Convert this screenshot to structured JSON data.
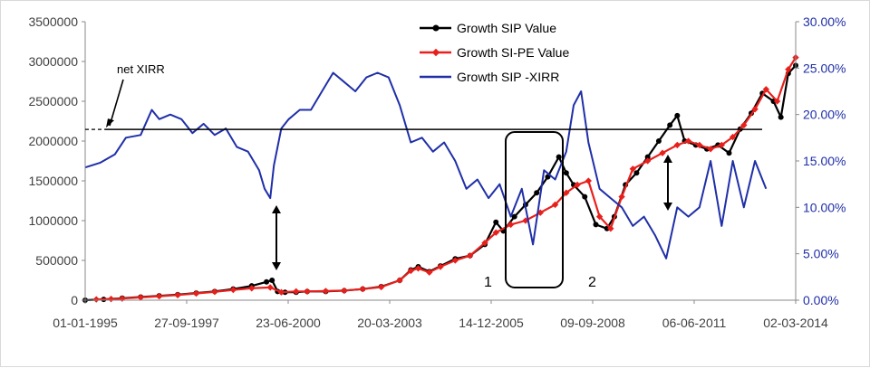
{
  "chart_data": {
    "type": "line",
    "title": "",
    "xlabel": "",
    "ylabel": "",
    "x_ticks": [
      "01-01-1995",
      "27-09-1997",
      "23-06-2000",
      "20-03-2003",
      "14-12-2005",
      "09-09-2008",
      "06-06-2011",
      "02-03-2014"
    ],
    "x_range_years": [
      1995.0,
      2014.2
    ],
    "y_left": {
      "range": [
        0,
        3500000
      ],
      "ticks": [
        "0",
        "500000",
        "1000000",
        "1500000",
        "2000000",
        "2500000",
        "3000000",
        "3500000"
      ],
      "color": "#404040"
    },
    "y_right": {
      "range": [
        0,
        0.3
      ],
      "ticks": [
        "0.00%",
        "5.00%",
        "10.00%",
        "15.00%",
        "20.00%",
        "25.00%",
        "30.00%"
      ],
      "color": "#1f2fa8"
    },
    "grid": false,
    "legend_position": "top-center",
    "series": [
      {
        "name": "Growth SIP Value",
        "axis": "left",
        "color": "#000000",
        "marker": "circle",
        "x": [
          1995.0,
          1995.5,
          1996.0,
          1996.5,
          1997.0,
          1997.5,
          1998.0,
          1998.5,
          1999.0,
          1999.5,
          1999.9,
          2000.05,
          2000.2,
          2000.4,
          2000.7,
          2001.0,
          2001.5,
          2002.0,
          2002.5,
          2003.0,
          2003.5,
          2003.8,
          2004.0,
          2004.3,
          2004.6,
          2005.0,
          2005.4,
          2005.8,
          2006.1,
          2006.3,
          2006.6,
          2006.9,
          2007.2,
          2007.5,
          2007.8,
          2008.0,
          2008.2,
          2008.5,
          2008.8,
          2009.1,
          2009.3,
          2009.6,
          2009.9,
          2010.2,
          2010.5,
          2010.8,
          2011.0,
          2011.2,
          2011.5,
          2011.8,
          2012.1,
          2012.4,
          2012.7,
          2013.0,
          2013.3,
          2013.6,
          2013.8,
          2014.0,
          2014.2
        ],
        "y": [
          0,
          10000,
          25000,
          40000,
          55000,
          70000,
          90000,
          110000,
          140000,
          180000,
          230000,
          250000,
          110000,
          100000,
          100000,
          110000,
          110000,
          120000,
          140000,
          170000,
          250000,
          380000,
          420000,
          360000,
          430000,
          520000,
          560000,
          700000,
          980000,
          870000,
          1050000,
          1200000,
          1350000,
          1550000,
          1800000,
          1600000,
          1450000,
          1300000,
          950000,
          900000,
          1050000,
          1450000,
          1600000,
          1800000,
          2000000,
          2200000,
          2320000,
          2000000,
          1950000,
          1900000,
          1950000,
          1850000,
          2150000,
          2350000,
          2600000,
          2500000,
          2300000,
          2850000,
          2950000
        ]
      },
      {
        "name": "Growth SI-PE Value",
        "axis": "left",
        "color": "#e8201c",
        "marker": "diamond",
        "x": [
          1995.3,
          1995.7,
          1996.0,
          1996.5,
          1997.0,
          1997.5,
          1998.0,
          1998.5,
          1999.0,
          1999.5,
          2000.0,
          2000.3,
          2000.7,
          2001.0,
          2001.5,
          2002.0,
          2002.5,
          2003.0,
          2003.5,
          2003.8,
          2004.0,
          2004.3,
          2004.6,
          2005.0,
          2005.4,
          2005.8,
          2006.1,
          2006.5,
          2006.9,
          2007.3,
          2007.7,
          2008.0,
          2008.3,
          2008.6,
          2008.9,
          2009.2,
          2009.5,
          2009.8,
          2010.2,
          2010.6,
          2011.0,
          2011.3,
          2011.6,
          2011.9,
          2012.2,
          2012.5,
          2012.8,
          2013.1,
          2013.4,
          2013.7,
          2014.0,
          2014.2
        ],
        "y": [
          10000,
          15000,
          20000,
          35000,
          50000,
          65000,
          85000,
          105000,
          130000,
          150000,
          160000,
          100000,
          110000,
          110000,
          115000,
          120000,
          140000,
          165000,
          250000,
          370000,
          400000,
          350000,
          420000,
          500000,
          560000,
          720000,
          850000,
          950000,
          1000000,
          1100000,
          1200000,
          1350000,
          1450000,
          1500000,
          1050000,
          900000,
          1300000,
          1650000,
          1750000,
          1850000,
          1950000,
          2000000,
          1950000,
          1900000,
          1950000,
          2050000,
          2200000,
          2400000,
          2650000,
          2500000,
          2900000,
          3050000
        ]
      },
      {
        "name": "Growth SIP -XIRR",
        "axis": "right",
        "color": "#1f2fa8",
        "marker": "none",
        "x": [
          1995.0,
          1995.4,
          1995.8,
          1996.1,
          1996.5,
          1996.8,
          1997.0,
          1997.3,
          1997.6,
          1997.9,
          1998.2,
          1998.5,
          1998.8,
          1999.1,
          1999.4,
          1999.7,
          1999.85,
          2000.0,
          2000.1,
          2000.3,
          2000.5,
          2000.8,
          2001.1,
          2001.4,
          2001.7,
          2002.0,
          2002.3,
          2002.6,
          2002.9,
          2003.2,
          2003.5,
          2003.8,
          2004.1,
          2004.4,
          2004.7,
          2005.0,
          2005.3,
          2005.6,
          2005.9,
          2006.2,
          2006.5,
          2006.8,
          2007.1,
          2007.4,
          2007.7,
          2008.0,
          2008.2,
          2008.4,
          2008.6,
          2008.9,
          2009.2,
          2009.5,
          2009.8,
          2010.1,
          2010.4,
          2010.7,
          2011.0,
          2011.3,
          2011.6,
          2011.9,
          2012.2,
          2012.5,
          2012.8,
          2013.1,
          2013.4
        ],
        "y": [
          0.143,
          0.148,
          0.157,
          0.175,
          0.178,
          0.205,
          0.195,
          0.2,
          0.195,
          0.18,
          0.19,
          0.178,
          0.185,
          0.165,
          0.16,
          0.14,
          0.12,
          0.11,
          0.145,
          0.185,
          0.195,
          0.205,
          0.205,
          0.225,
          0.245,
          0.235,
          0.225,
          0.24,
          0.245,
          0.24,
          0.21,
          0.17,
          0.175,
          0.16,
          0.17,
          0.15,
          0.12,
          0.13,
          0.11,
          0.125,
          0.09,
          0.12,
          0.06,
          0.14,
          0.13,
          0.16,
          0.21,
          0.225,
          0.17,
          0.12,
          0.11,
          0.1,
          0.08,
          0.09,
          0.07,
          0.045,
          0.1,
          0.09,
          0.1,
          0.15,
          0.08,
          0.15,
          0.1,
          0.15,
          0.12
        ]
      }
    ],
    "reference_line": {
      "label": "net XIRR",
      "value_right_axis": 0.184
    },
    "annotations": [
      "net XIRR",
      "1",
      "2"
    ]
  }
}
